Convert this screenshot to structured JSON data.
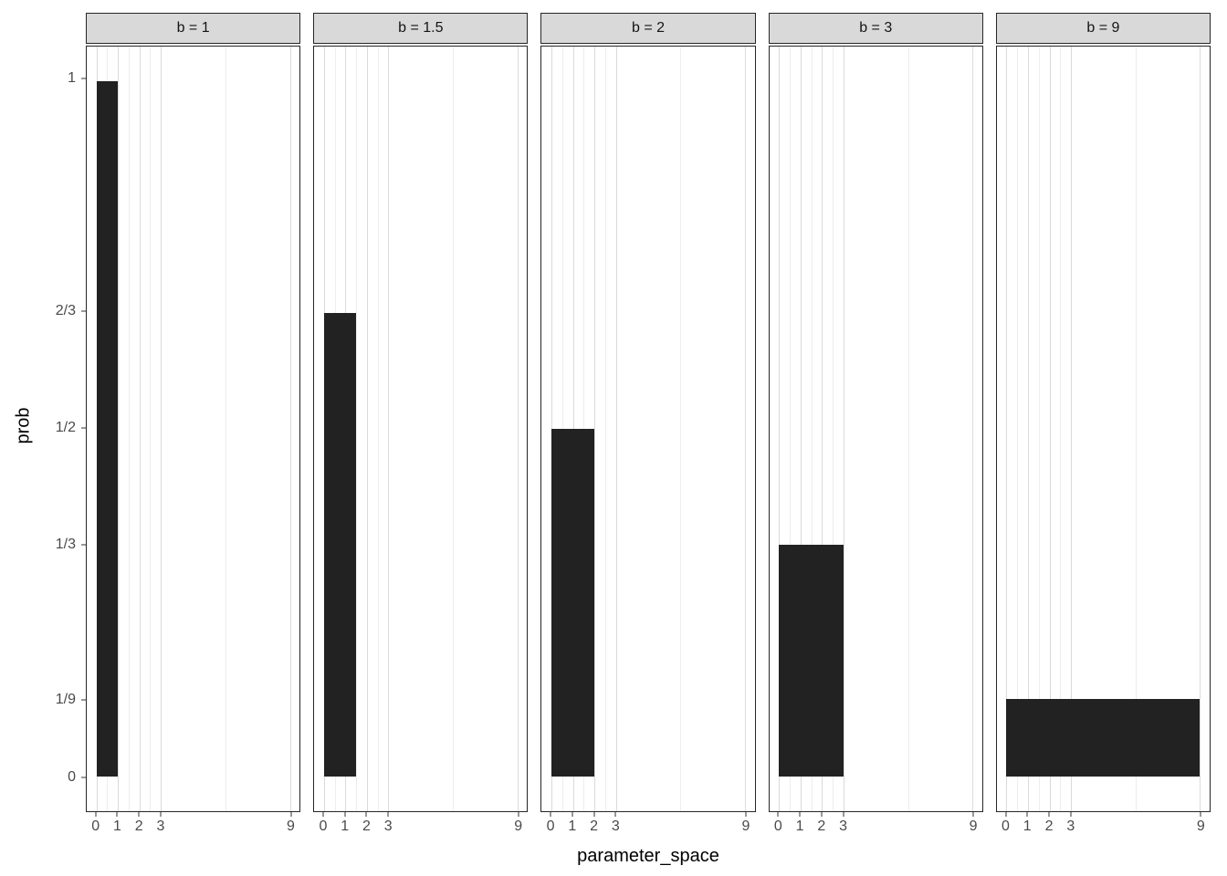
{
  "chart_data": {
    "type": "bar",
    "title": "",
    "xlabel": "parameter_space",
    "ylabel": "prob",
    "x_range": [
      0,
      9
    ],
    "y_range": [
      0,
      1
    ],
    "x_breaks": [
      0,
      1,
      2,
      3,
      9
    ],
    "x_minor_breaks": [
      0.5,
      1.5,
      2.5,
      6
    ],
    "y_breaks": [
      {
        "value": 0,
        "label": "0"
      },
      {
        "value": 0.1111,
        "label": "1/9"
      },
      {
        "value": 0.3333,
        "label": "1/3"
      },
      {
        "value": 0.5,
        "label": "1/2"
      },
      {
        "value": 0.6667,
        "label": "2/3"
      },
      {
        "value": 1,
        "label": "1"
      }
    ],
    "grid": "vertical-only",
    "legend": "none",
    "facets": [
      {
        "label": "b = 1",
        "b": 1,
        "bar": {
          "x_start": 0,
          "x_end": 1,
          "height": 1,
          "height_label": "1"
        }
      },
      {
        "label": "b = 1.5",
        "b": 1.5,
        "bar": {
          "x_start": 0,
          "x_end": 1.5,
          "height": 0.6667,
          "height_label": "2/3"
        }
      },
      {
        "label": "b = 2",
        "b": 2,
        "bar": {
          "x_start": 0,
          "x_end": 2,
          "height": 0.5,
          "height_label": "1/2"
        }
      },
      {
        "label": "b = 3",
        "b": 3,
        "bar": {
          "x_start": 0,
          "x_end": 3,
          "height": 0.3333,
          "height_label": "1/3"
        }
      },
      {
        "label": "b = 9",
        "b": 9,
        "bar": {
          "x_start": 0,
          "x_end": 9,
          "height": 0.1111,
          "height_label": "1/9"
        }
      }
    ],
    "colors": {
      "bar": "#222222",
      "strip_bg": "#d9d9d9",
      "panel_border": "#262626",
      "grid_major": "#dadada",
      "grid_minor": "#ededed",
      "tick_text": "#4a4a4a",
      "title_text": "#000000"
    }
  }
}
